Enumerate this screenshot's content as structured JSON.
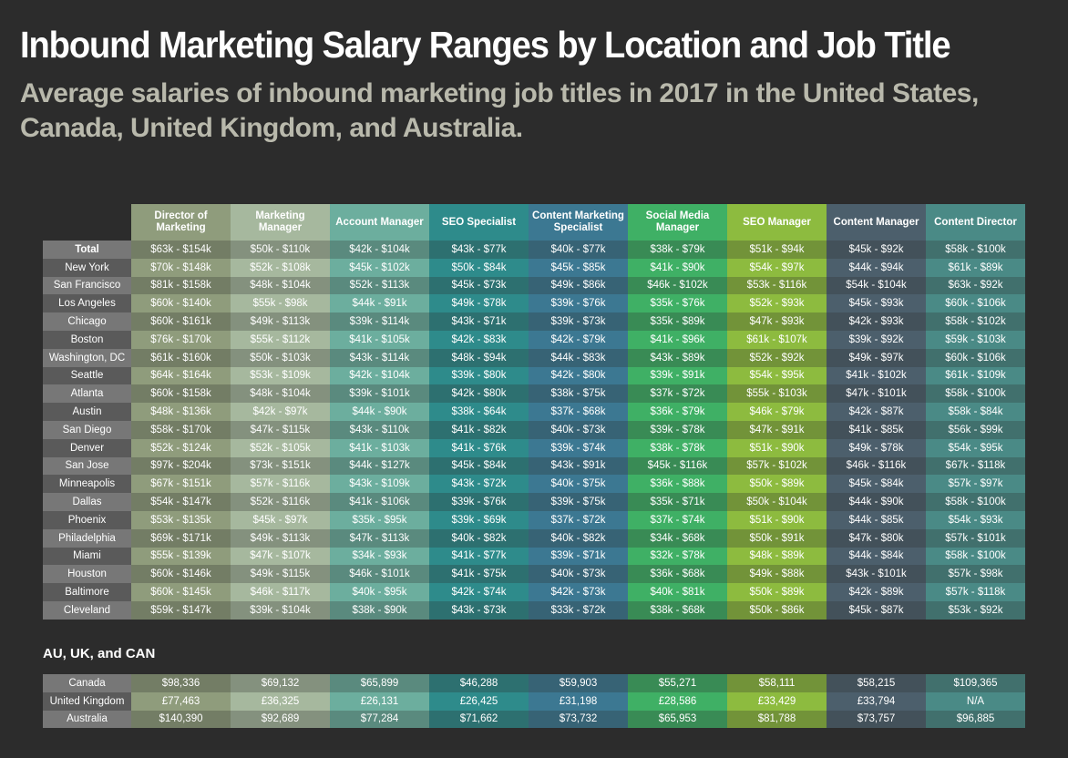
{
  "title": "Inbound Marketing Salary Ranges by Location and Job Title",
  "subtitle": "Average salaries of inbound marketing job titles in 2017 in the United States, Canada, United Kingdom, and Australia.",
  "intl_heading": "AU, UK, and CAN",
  "colors": {
    "columns": [
      "#8f9c7c",
      "#a6b89e",
      "#6cae9e",
      "#2e8b8b",
      "#3c7892",
      "#3fb065",
      "#8dbb3f",
      "#4c5f6c",
      "#4a8a86"
    ],
    "row_label": "#777777",
    "row_label_alt": "#5a5a5a",
    "background": "#2c2c2c"
  },
  "chart_data": {
    "type": "table",
    "columns": [
      "Director of Marketing",
      "Marketing Manager",
      "Account Manager",
      "SEO Specialist",
      "Content Marketing Specialist",
      "Social Media Manager",
      "SEO Manager",
      "Content Manager",
      "Content Director"
    ],
    "rows": [
      {
        "label": "Total",
        "values": [
          "$63k - $154k",
          "$50k - $110k",
          "$42k - $104k",
          "$43k - $77k",
          "$40k - $77k",
          "$38k - $79k",
          "$51k - $94k",
          "$45k - $92k",
          "$58k - $100k"
        ]
      },
      {
        "label": "New York",
        "values": [
          "$70k - $148k",
          "$52k - $108k",
          "$45k - $102k",
          "$50k - $84k",
          "$45k - $85k",
          "$41k - $90k",
          "$54k - $97k",
          "$44k - $94k",
          "$61k - $89k"
        ]
      },
      {
        "label": "San Francisco",
        "values": [
          "$81k - $158k",
          "$48k - $104k",
          "$52k - $113k",
          "$45k - $73k",
          "$49k - $86k",
          "$46k - $102k",
          "$53k - $116k",
          "$54k - $104k",
          "$63k - $92k"
        ]
      },
      {
        "label": "Los Angeles",
        "values": [
          "$60k - $140k",
          "$55k - $98k",
          "$44k - $91k",
          "$49k - $78k",
          "$39k - $76k",
          "$35k - $76k",
          "$52k - $93k",
          "$45k - $93k",
          "$60k - $106k"
        ]
      },
      {
        "label": "Chicago",
        "values": [
          "$60k - $161k",
          "$49k - $113k",
          "$39k - $114k",
          "$43k - $71k",
          "$39k - $73k",
          "$35k - $89k",
          "$47k - $93k",
          "$42k - $93k",
          "$58k - $102k"
        ]
      },
      {
        "label": "Boston",
        "values": [
          "$76k - $170k",
          "$55k - $112k",
          "$41k - $105k",
          "$42k - $83k",
          "$42k - $79k",
          "$41k - $96k",
          "$61k - $107k",
          "$39k - $92k",
          "$59k - $103k"
        ]
      },
      {
        "label": "Washington, DC",
        "values": [
          "$61k - $160k",
          "$50k - $103k",
          "$43k - $114k",
          "$48k - $94k",
          "$44k - $83k",
          "$43k - $89k",
          "$52k - $92k",
          "$49k - $97k",
          "$60k - $106k"
        ]
      },
      {
        "label": "Seattle",
        "values": [
          "$64k - $164k",
          "$53k - $109k",
          "$42k - $104k",
          "$39k - $80k",
          "$42k - $80k",
          "$39k - $91k",
          "$54k - $95k",
          "$41k - $102k",
          "$61k - $109k"
        ]
      },
      {
        "label": "Atlanta",
        "values": [
          "$60k - $158k",
          "$48k - $104k",
          "$39k - $101k",
          "$42k - $80k",
          "$38k - $75k",
          "$37k - $72k",
          "$55k - $103k",
          "$47k - $101k",
          "$58k - $100k"
        ]
      },
      {
        "label": "Austin",
        "values": [
          "$48k - $136k",
          "$42k - $97k",
          "$44k - $90k",
          "$38k - $64k",
          "$37k - $68k",
          "$36k - $79k",
          "$46k - $79k",
          "$42k - $87k",
          "$58k - $84k"
        ]
      },
      {
        "label": "San Diego",
        "values": [
          "$58k - $170k",
          "$47k - $115k",
          "$43k - $110k",
          "$41k - $82k",
          "$40k - $73k",
          "$39k - $78k",
          "$47k - $91k",
          "$41k - $85k",
          "$56k - $99k"
        ]
      },
      {
        "label": "Denver",
        "values": [
          "$52k - $124k",
          "$52k - $105k",
          "$41k - $103k",
          "$41k - $76k",
          "$39k - $74k",
          "$38k - $78k",
          "$51k - $90k",
          "$49k - $78k",
          "$54k - $95k"
        ]
      },
      {
        "label": "San Jose",
        "values": [
          "$97k - $204k",
          "$73k - $151k",
          "$44k - $127k",
          "$45k - $84k",
          "$43k - $91k",
          "$45k - $116k",
          "$57k - $102k",
          "$46k - $116k",
          "$67k - $118k"
        ]
      },
      {
        "label": "Minneapolis",
        "values": [
          "$67k - $151k",
          "$57k - $116k",
          "$43k - $109k",
          "$43k - $72k",
          "$40k - $75k",
          "$36k - $88k",
          "$50k - $89k",
          "$45k - $84k",
          "$57k - $97k"
        ]
      },
      {
        "label": "Dallas",
        "values": [
          "$54k - $147k",
          "$52k - $116k",
          "$41k - $106k",
          "$39k - $76k",
          "$39k - $75k",
          "$35k - $71k",
          "$50k - $104k",
          "$44k - $90k",
          "$58k - $100k"
        ]
      },
      {
        "label": "Phoenix",
        "values": [
          "$53k - $135k",
          "$45k - $97k",
          "$35k - $95k",
          "$39k - $69k",
          "$37k - $72k",
          "$37k - $74k",
          "$51k - $90k",
          "$44k - $85k",
          "$54k - $93k"
        ]
      },
      {
        "label": "Philadelphia",
        "values": [
          "$69k - $171k",
          "$49k - $113k",
          "$47k - $113k",
          "$40k - $82k",
          "$40k - $82k",
          "$34k - $68k",
          "$50k - $91k",
          "$47k - $80k",
          "$57k - $101k"
        ]
      },
      {
        "label": "Miami",
        "values": [
          "$55k - $139k",
          "$47k - $107k",
          "$34k - $93k",
          "$41k - $77k",
          "$39k - $71k",
          "$32k - $78k",
          "$48k - $89k",
          "$44k - $84k",
          "$58k - $100k"
        ]
      },
      {
        "label": "Houston",
        "values": [
          "$60k - $146k",
          "$49k - $115k",
          "$46k - $101k",
          "$41k - $75k",
          "$40k - $73k",
          "$36k - $68k",
          "$49k - $88k",
          "$43k - $101k",
          "$57k - $98k"
        ]
      },
      {
        "label": "Baltimore",
        "values": [
          "$60k - $145k",
          "$46k - $117k",
          "$40k - $95k",
          "$42k - $74k",
          "$42k - $73k",
          "$40k - $81k",
          "$50k - $89k",
          "$42k - $89k",
          "$57k - $118k"
        ]
      },
      {
        "label": "Cleveland",
        "values": [
          "$59k - $147k",
          "$39k - $104k",
          "$38k - $90k",
          "$43k - $73k",
          "$33k - $72k",
          "$38k - $68k",
          "$50k - $86k",
          "$45k - $87k",
          "$53k - $92k"
        ]
      }
    ],
    "intl_rows": [
      {
        "label": "Canada",
        "values": [
          "$98,336",
          "$69,132",
          "$65,899",
          "$46,288",
          "$59,903",
          "$55,271",
          "$58,111",
          "$58,215",
          "$109,365"
        ]
      },
      {
        "label": "United Kingdom",
        "values": [
          "£77,463",
          "£36,325",
          "£26,131",
          "£26,425",
          "£31,198",
          "£28,586",
          "£33,429",
          "£33,794",
          "N/A"
        ]
      },
      {
        "label": "Australia",
        "values": [
          "$140,390",
          "$92,689",
          "$77,284",
          "$71,662",
          "$73,732",
          "$65,953",
          "$81,788",
          "$73,757",
          "$96,885"
        ]
      }
    ]
  }
}
